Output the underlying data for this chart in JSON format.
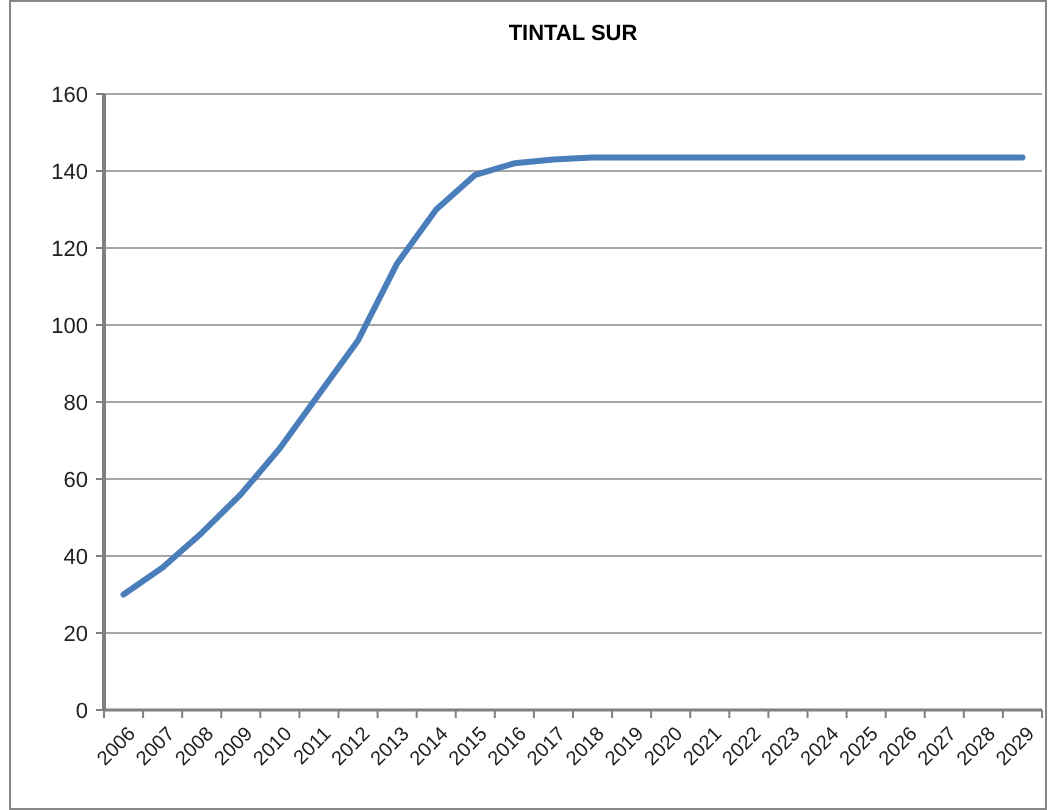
{
  "chart_data": {
    "type": "line",
    "title": "TINTAL SUR",
    "categories": [
      "2006",
      "2007",
      "2008",
      "2009",
      "2010",
      "2011",
      "2012",
      "2013",
      "2014",
      "2015",
      "2016",
      "2017",
      "2018",
      "2019",
      "2020",
      "2021",
      "2022",
      "2023",
      "2024",
      "2025",
      "2026",
      "2027",
      "2028",
      "2029"
    ],
    "series": [
      {
        "color": "#4a7ebb",
        "values": [
          30,
          37,
          46,
          56,
          68,
          82,
          96,
          116,
          130,
          139,
          142,
          143,
          143.5,
          143.5,
          143.5,
          143.5,
          143.5,
          143.5,
          143.5,
          143.5,
          143.5,
          143.5,
          143.5,
          143.5
        ]
      }
    ],
    "ylim": [
      0,
      160
    ],
    "yticks": [
      0,
      20,
      40,
      60,
      80,
      100,
      120,
      140,
      160
    ],
    "grid": "y",
    "marker": "none",
    "line_style": "solid"
  }
}
